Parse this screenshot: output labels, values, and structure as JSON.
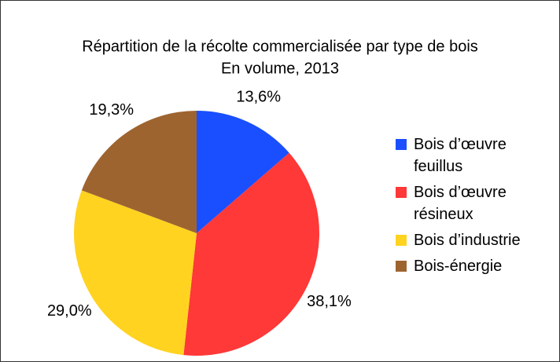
{
  "chart_data": {
    "type": "pie",
    "title": "Répartition de la récolte commercialisée par type de bois",
    "subtitle": "En volume, 2013",
    "categories": [
      "Bois d’œuvre feuillus",
      "Bois d’œuvre résineux",
      "Bois d’industrie",
      "Bois-énergie"
    ],
    "values": [
      13.6,
      38.1,
      29.0,
      19.3
    ],
    "value_labels": [
      "13,6%",
      "38,1%",
      "29,0%",
      "19,3%"
    ],
    "colors": [
      "#1a4fff",
      "#ff3838",
      "#ffd320",
      "#9e6430"
    ],
    "legend": "right"
  }
}
